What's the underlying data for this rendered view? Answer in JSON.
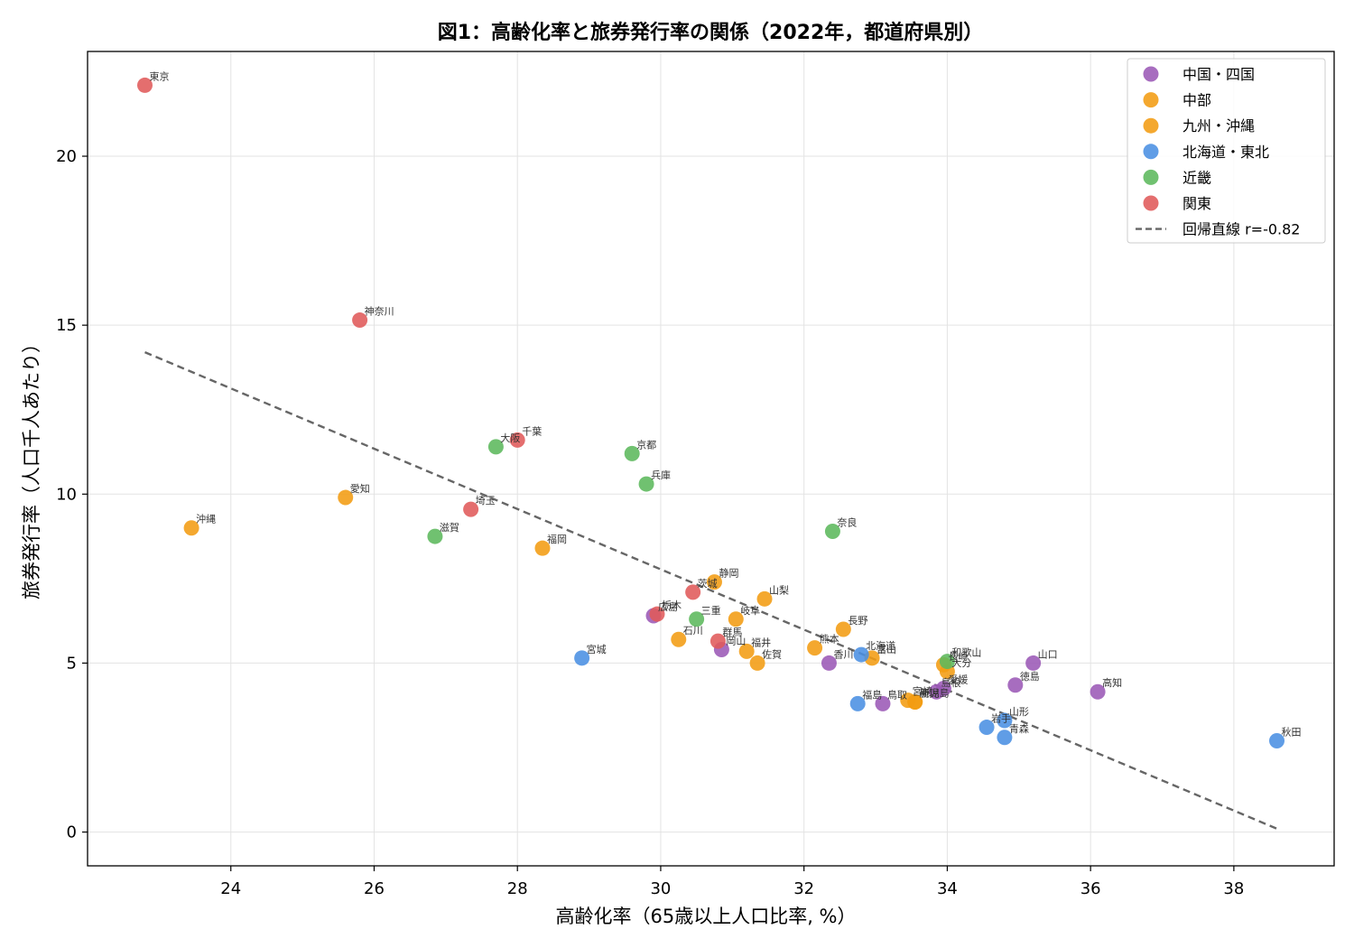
{
  "chart_data": {
    "type": "scatter",
    "title": "図1：高齢化率と旅券発行率の関係（2022年，都道府県別）",
    "xlabel": "高齢化率（65歳以上人口比率, %）",
    "ylabel": "旅券発行率（人口千人あたり）",
    "xlim": [
      22.0,
      39.4
    ],
    "ylim": [
      -1.0,
      23.1
    ],
    "xticks": [
      24,
      26,
      28,
      30,
      32,
      34,
      36,
      38
    ],
    "yticks": [
      0,
      5,
      10,
      15,
      20
    ],
    "grid": true,
    "legend_position": "top-right",
    "series": [
      {
        "name": "中国・四国",
        "color": "#9b59b6",
        "points": [
          {
            "label": "広島",
            "x": 29.9,
            "y": 6.4
          },
          {
            "label": "岡山",
            "x": 30.85,
            "y": 5.4
          },
          {
            "label": "香川",
            "x": 32.35,
            "y": 5.0
          },
          {
            "label": "鳥取",
            "x": 33.1,
            "y": 3.8
          },
          {
            "label": "島根",
            "x": 33.85,
            "y": 4.15
          },
          {
            "label": "愛媛",
            "x": 33.95,
            "y": 4.25
          },
          {
            "label": "徳島",
            "x": 34.95,
            "y": 4.35
          },
          {
            "label": "山口",
            "x": 35.2,
            "y": 5.0
          },
          {
            "label": "高知",
            "x": 36.1,
            "y": 4.15
          }
        ]
      },
      {
        "name": "中部",
        "color": "#f39c12",
        "points": [
          {
            "label": "愛知",
            "x": 25.6,
            "y": 9.9
          },
          {
            "label": "石川",
            "x": 30.25,
            "y": 5.7
          },
          {
            "label": "静岡",
            "x": 30.75,
            "y": 7.4
          },
          {
            "label": "岐阜",
            "x": 31.05,
            "y": 6.3
          },
          {
            "label": "福井",
            "x": 31.2,
            "y": 5.35
          },
          {
            "label": "山梨",
            "x": 31.45,
            "y": 6.9
          },
          {
            "label": "長野",
            "x": 32.55,
            "y": 6.0
          },
          {
            "label": "富山",
            "x": 32.95,
            "y": 5.15
          },
          {
            "label": "新潟",
            "x": 33.55,
            "y": 3.85
          }
        ]
      },
      {
        "name": "九州・沖縄",
        "color": "#f39c12",
        "points": [
          {
            "label": "沖縄",
            "x": 23.45,
            "y": 9.0
          },
          {
            "label": "福岡",
            "x": 28.35,
            "y": 8.4
          },
          {
            "label": "佐賀",
            "x": 31.35,
            "y": 5.0
          },
          {
            "label": "熊本",
            "x": 32.15,
            "y": 5.45
          },
          {
            "label": "宮崎",
            "x": 33.45,
            "y": 3.9
          },
          {
            "label": "鹿児島",
            "x": 33.55,
            "y": 3.85
          },
          {
            "label": "長崎",
            "x": 33.95,
            "y": 4.95
          },
          {
            "label": "大分",
            "x": 34.0,
            "y": 4.75
          }
        ]
      },
      {
        "name": "北海道・東北",
        "color": "#4a90e2",
        "points": [
          {
            "label": "宮城",
            "x": 28.9,
            "y": 5.15
          },
          {
            "label": "福島",
            "x": 32.75,
            "y": 3.8
          },
          {
            "label": "北海道",
            "x": 32.8,
            "y": 5.25
          },
          {
            "label": "岩手",
            "x": 34.55,
            "y": 3.1
          },
          {
            "label": "山形",
            "x": 34.8,
            "y": 3.3
          },
          {
            "label": "青森",
            "x": 34.8,
            "y": 2.8
          },
          {
            "label": "秋田",
            "x": 38.6,
            "y": 2.7
          }
        ]
      },
      {
        "name": "近畿",
        "color": "#5cb85c",
        "points": [
          {
            "label": "滋賀",
            "x": 26.85,
            "y": 8.75
          },
          {
            "label": "大阪",
            "x": 27.7,
            "y": 11.4
          },
          {
            "label": "京都",
            "x": 29.6,
            "y": 11.2
          },
          {
            "label": "兵庫",
            "x": 29.8,
            "y": 10.3
          },
          {
            "label": "三重",
            "x": 30.5,
            "y": 6.3
          },
          {
            "label": "奈良",
            "x": 32.4,
            "y": 8.9
          },
          {
            "label": "和歌山",
            "x": 34.0,
            "y": 5.05
          }
        ]
      },
      {
        "name": "関東",
        "color": "#e05a5a",
        "points": [
          {
            "label": "東京",
            "x": 22.8,
            "y": 22.1
          },
          {
            "label": "神奈川",
            "x": 25.8,
            "y": 15.15
          },
          {
            "label": "埼玉",
            "x": 27.35,
            "y": 9.55
          },
          {
            "label": "千葉",
            "x": 28.0,
            "y": 11.6
          },
          {
            "label": "栃木",
            "x": 29.95,
            "y": 6.45
          },
          {
            "label": "茨城",
            "x": 30.45,
            "y": 7.1
          },
          {
            "label": "群馬",
            "x": 30.8,
            "y": 5.65
          }
        ]
      }
    ],
    "regression": {
      "name": "回帰直線 r=-0.82",
      "color": "#666666",
      "style": "dashed",
      "x": [
        22.8,
        38.6
      ],
      "y": [
        14.2,
        0.1
      ]
    }
  }
}
